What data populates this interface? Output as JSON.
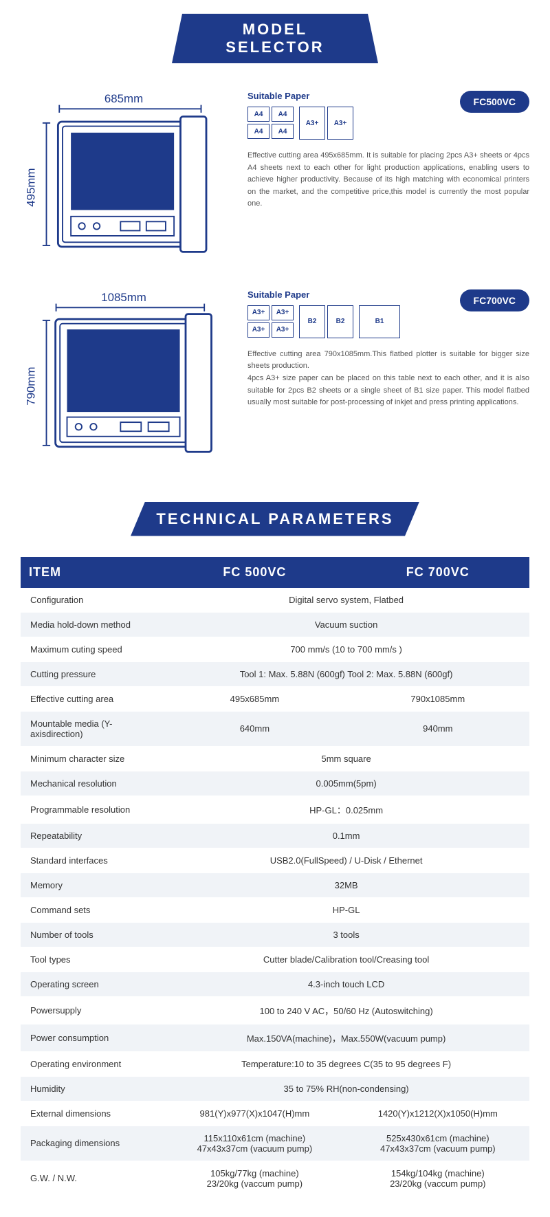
{
  "headers": {
    "model_selector": "MODEL SELECTOR",
    "tech_params": "TECHNICAL PARAMETERS"
  },
  "models": [
    {
      "badge": "FC500VC",
      "width_label": "685mm",
      "height_label": "495mm",
      "suitable_label": "Suitable Paper",
      "papers_a4": [
        "A4",
        "A4",
        "A4",
        "A4"
      ],
      "papers_a3": [
        "A3+",
        "A3+"
      ],
      "description": "Effective cutting area 495x685mm. It is suitable for placing 2pcs A3+ sheets or 4pcs A4 sheets next to each other for light production applications, enabling users to achieve higher productivity. Because of its high matching with economical printers on the market, and the competitive price,this model is currently the most popular one."
    },
    {
      "badge": "FC700VC",
      "width_label": "1085mm",
      "height_label": "790mm",
      "suitable_label": "Suitable Paper",
      "papers_a3": [
        "A3+",
        "A3+",
        "A3+",
        "A3+"
      ],
      "papers_b2": [
        "B2",
        "B2"
      ],
      "papers_b1": [
        "B1"
      ],
      "description": "Effective cutting area 790x1085mm.This flatbed plotter is suitable for bigger size sheets production.\n4pcs A3+ size paper can be placed on this table next to each other, and it is also suitable for 2pcs B2 sheets or a single sheet of B1 size paper. This model flatbed usually most suitable for post-processing of inkjet and press printing applications."
    }
  ],
  "table": {
    "headers": [
      "ITEM",
      "FC 500VC",
      "FC 700VC"
    ],
    "rows": [
      {
        "label": "Configuration",
        "merged": "Digital servo system, Flatbed"
      },
      {
        "label": "Media hold-down method",
        "merged": "Vacuum suction"
      },
      {
        "label": "Maximum cuting speed",
        "merged": "700 mm/s (10 to 700 mm/s )"
      },
      {
        "label": "Cutting pressure",
        "merged": "Tool 1: Max. 5.88N (600gf)  Tool 2: Max. 5.88N (600gf)"
      },
      {
        "label": "Effective cutting area",
        "col1": "495x685mm",
        "col2": "790x1085mm"
      },
      {
        "label": "Mountable media (Y-axisdirection)",
        "col1": "640mm",
        "col2": "940mm"
      },
      {
        "label": "Minimum character size",
        "merged": "5mm square"
      },
      {
        "label": "Mechanical resolution",
        "merged": "0.005mm(5pm)"
      },
      {
        "label": "Programmable resolution",
        "merged": "HP-GL：0.025mm"
      },
      {
        "label": "Repeatability",
        "merged": "0.1mm"
      },
      {
        "label": "Standard interfaces",
        "merged": "USB2.0(FullSpeed) / U-Disk / Ethernet"
      },
      {
        "label": "Memory",
        "merged": "32MB"
      },
      {
        "label": "Command sets",
        "merged": "HP-GL"
      },
      {
        "label": "Number of tools",
        "merged": "3 tools"
      },
      {
        "label": "Tool types",
        "merged": "Cutter blade/Calibration tool/Creasing tool"
      },
      {
        "label": "Operating screen",
        "merged": "4.3-inch touch LCD"
      },
      {
        "label": "Powersupply",
        "merged": "100 to 240 V AC，50/60 Hz (Autoswitching)"
      },
      {
        "label": "Power consumption",
        "merged": "Max.150VA(machine)，Max.550W(vacuum pump)"
      },
      {
        "label": "Operating environment",
        "merged": "Temperature:10 to 35 degrees C(35 to 95 degrees F)"
      },
      {
        "label": "Humidity",
        "merged": "35 to 75% RH(non-condensing)"
      },
      {
        "label": "External dimensions",
        "col1": "981(Y)x977(X)x1047(H)mm",
        "col2": "1420(Y)x1212(X)x1050(H)mm"
      },
      {
        "label": "Packaging dimensions",
        "col1": "115x110x61cm (machine)\n47x43x37cm (vacuum pump)",
        "col2": "525x430x61cm (machine)\n47x43x37cm (vacuum pump)"
      },
      {
        "label": "G.W. / N.W.",
        "col1": "105kg/77kg (machine)\n23/20kg (vaccum pump)",
        "col2": "154kg/104kg (machine)\n23/20kg (vaccum pump)"
      }
    ]
  },
  "colors": {
    "primary": "#1e3a8a",
    "text": "#333",
    "row_alt": "#f0f3f7"
  }
}
